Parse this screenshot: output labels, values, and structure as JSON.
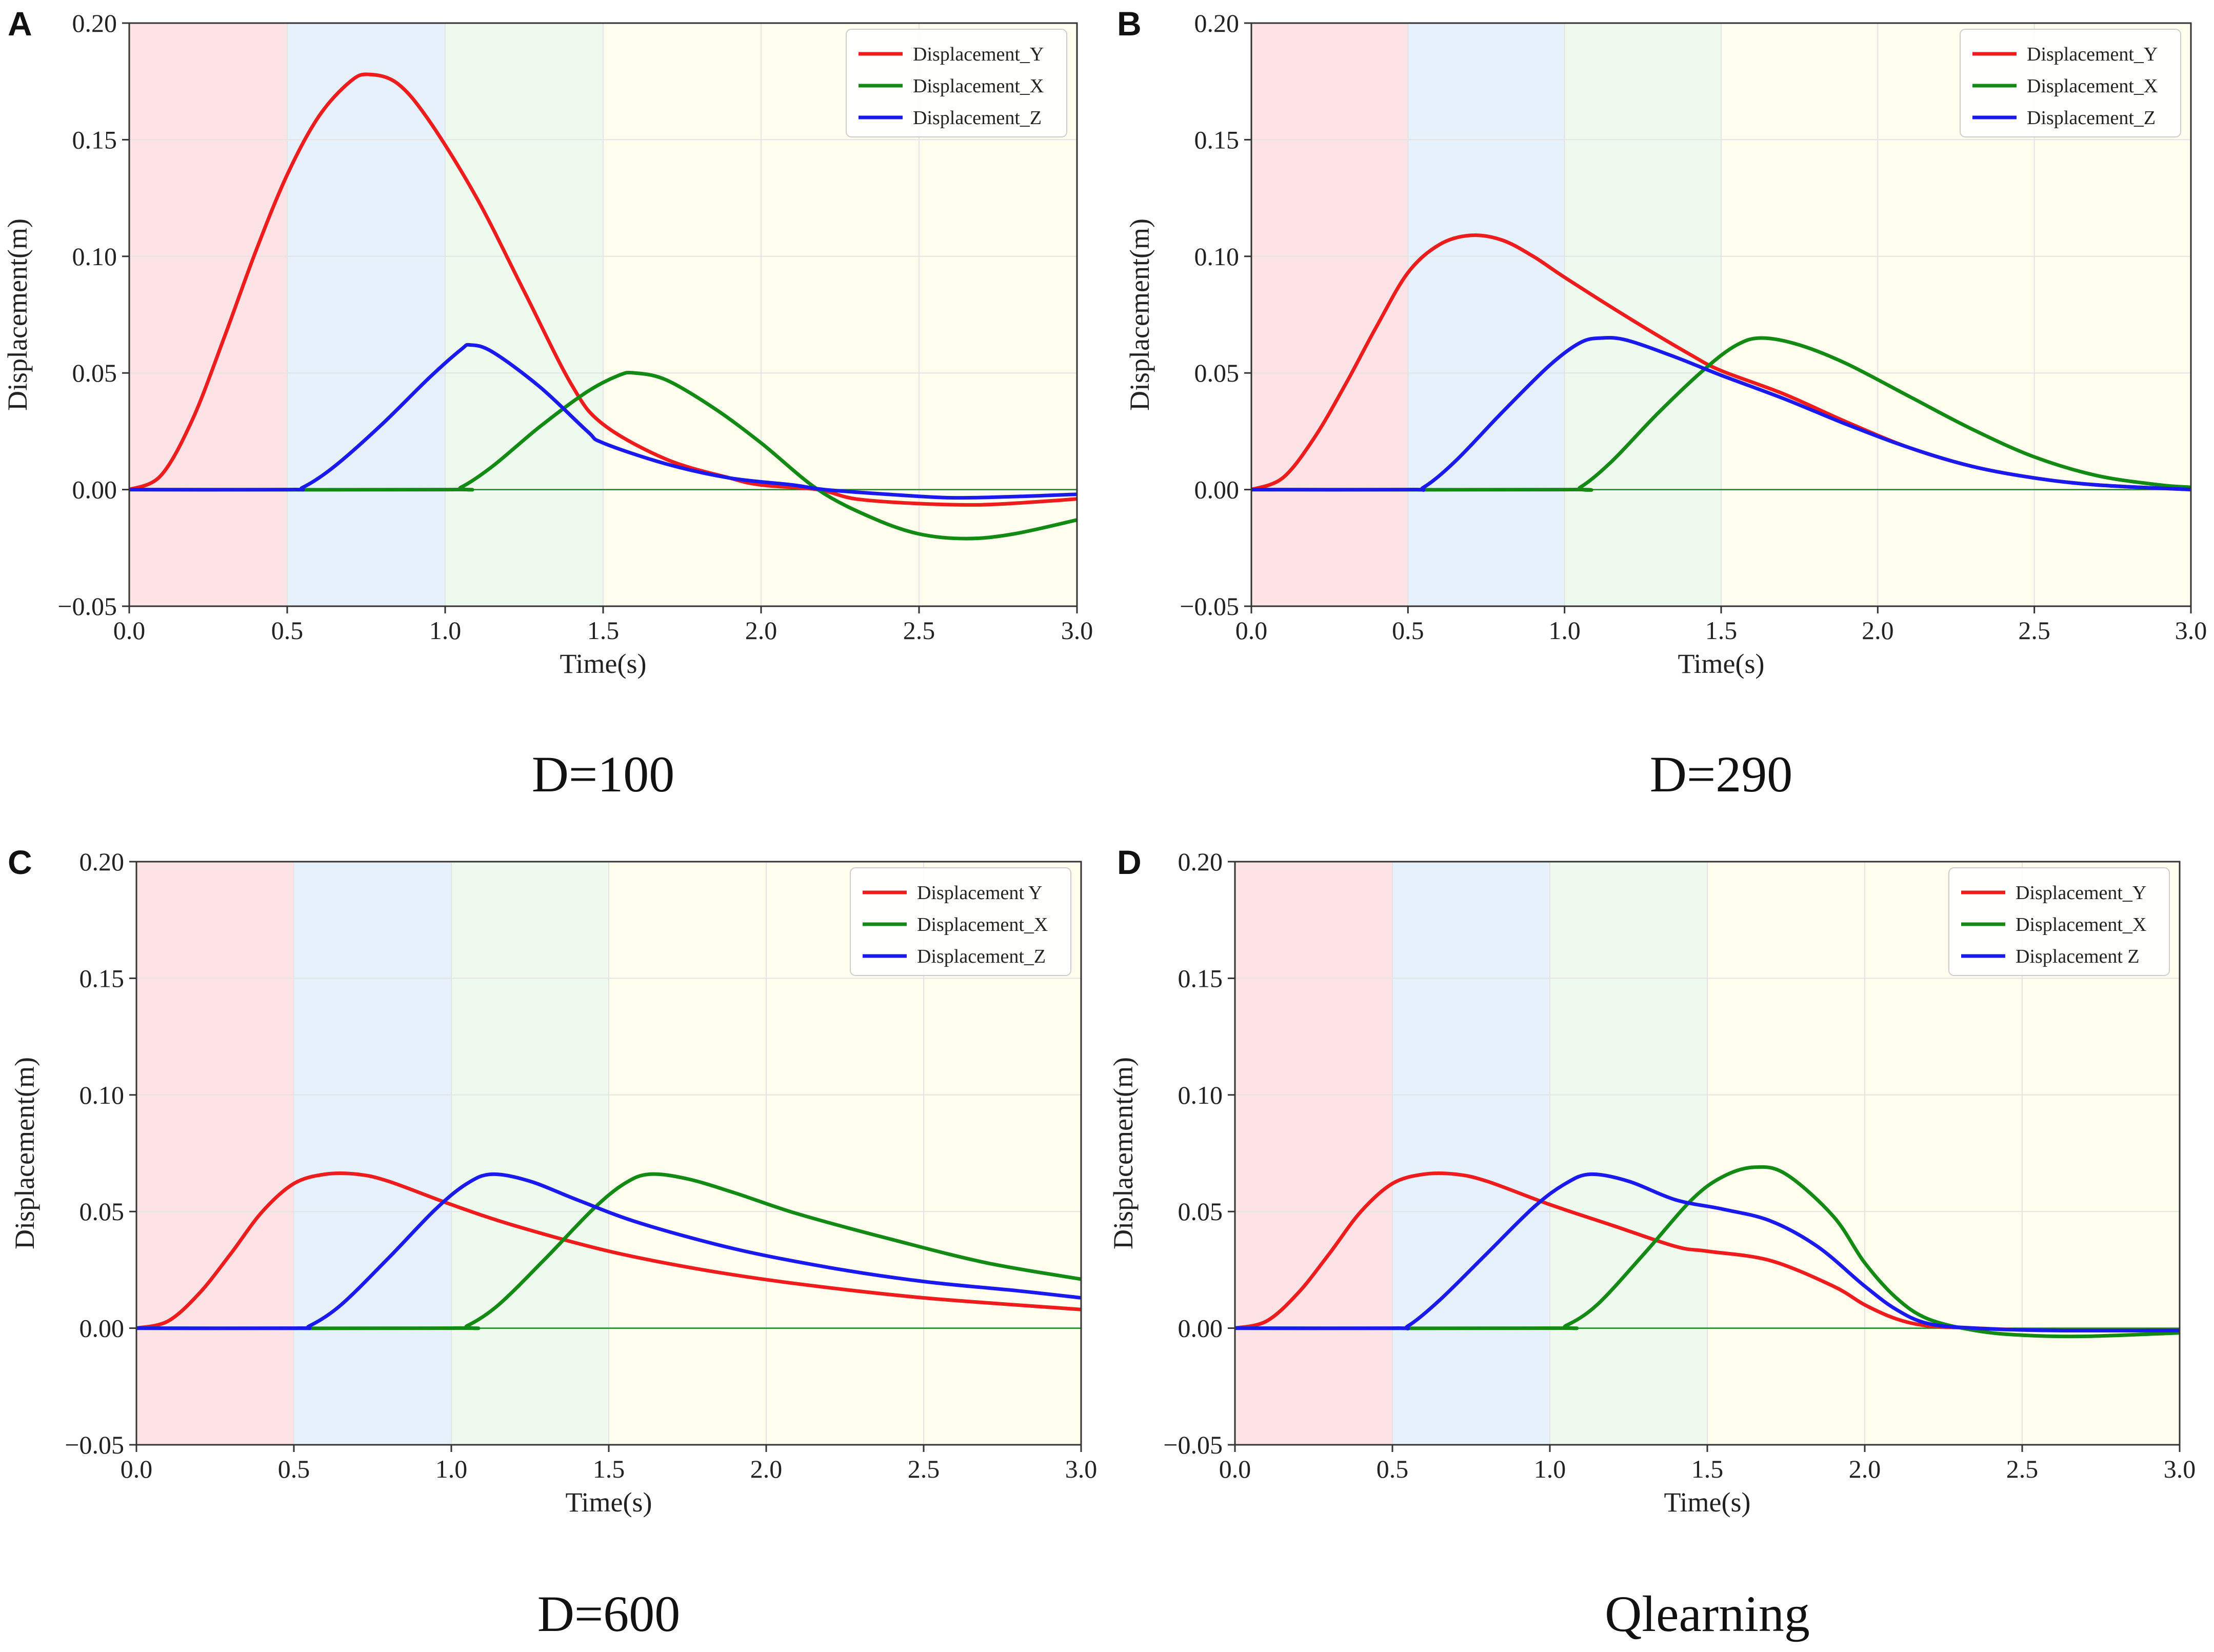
{
  "colors": {
    "red": "#ee1c1c",
    "green": "#138a13",
    "blue": "#1a1aee",
    "phase_bands": [
      "#fde3e5",
      "#e6f1fc",
      "#eefaee",
      "#fefdee"
    ]
  },
  "chart_data": [
    {
      "type": "line",
      "panel": "A",
      "caption": "D=100",
      "xlabel": "Time(s)",
      "ylabel": "Displacement(m)",
      "xlim": [
        0,
        3
      ],
      "ylim": [
        -0.05,
        0.2
      ],
      "xticks": [
        "0.0",
        "0.5",
        "1.0",
        "1.5",
        "2.0",
        "2.5",
        "3.0"
      ],
      "yticks": [
        "−0.05",
        "0.00",
        "0.05",
        "0.10",
        "0.15",
        "0.20"
      ],
      "phase_bands": [
        [
          0,
          0.5
        ],
        [
          0.5,
          1.0
        ],
        [
          1.0,
          1.5
        ],
        [
          1.5,
          3.0
        ]
      ],
      "legend_position": "top-right",
      "series": [
        {
          "name": "Displacement_Y",
          "color": "red",
          "points": [
            [
              0,
              0
            ],
            [
              0.1,
              0.006
            ],
            [
              0.2,
              0.03
            ],
            [
              0.3,
              0.065
            ],
            [
              0.4,
              0.102
            ],
            [
              0.5,
              0.135
            ],
            [
              0.6,
              0.16
            ],
            [
              0.7,
              0.175
            ],
            [
              0.76,
              0.178
            ],
            [
              0.85,
              0.174
            ],
            [
              0.95,
              0.158
            ],
            [
              1.1,
              0.125
            ],
            [
              1.25,
              0.085
            ],
            [
              1.4,
              0.045
            ],
            [
              1.5,
              0.028
            ],
            [
              1.7,
              0.013
            ],
            [
              1.9,
              0.005
            ],
            [
              2.0,
              0.002
            ],
            [
              2.18,
              0.0
            ],
            [
              2.3,
              -0.004
            ],
            [
              2.5,
              -0.006
            ],
            [
              2.7,
              -0.0065
            ],
            [
              2.9,
              -0.005
            ],
            [
              3.0,
              -0.004
            ]
          ]
        },
        {
          "name": "Displacement_X",
          "color": "green",
          "points": [
            [
              0,
              0
            ],
            [
              1.0,
              0
            ],
            [
              1.05,
              0.001
            ],
            [
              1.15,
              0.01
            ],
            [
              1.3,
              0.027
            ],
            [
              1.45,
              0.042
            ],
            [
              1.55,
              0.049
            ],
            [
              1.6,
              0.05
            ],
            [
              1.7,
              0.047
            ],
            [
              1.85,
              0.035
            ],
            [
              2.0,
              0.02
            ],
            [
              2.18,
              0.0
            ],
            [
              2.35,
              -0.012
            ],
            [
              2.5,
              -0.019
            ],
            [
              2.65,
              -0.021
            ],
            [
              2.8,
              -0.019
            ],
            [
              3.0,
              -0.013
            ]
          ]
        },
        {
          "name": "Displacement_Z",
          "color": "blue",
          "points": [
            [
              0,
              0
            ],
            [
              0.5,
              0
            ],
            [
              0.55,
              0.001
            ],
            [
              0.65,
              0.01
            ],
            [
              0.8,
              0.028
            ],
            [
              0.95,
              0.048
            ],
            [
              1.05,
              0.06
            ],
            [
              1.08,
              0.062
            ],
            [
              1.15,
              0.059
            ],
            [
              1.3,
              0.044
            ],
            [
              1.45,
              0.025
            ],
            [
              1.5,
              0.02
            ],
            [
              1.7,
              0.011
            ],
            [
              1.9,
              0.005
            ],
            [
              2.1,
              0.002
            ],
            [
              2.2,
              0.0
            ],
            [
              2.4,
              -0.002
            ],
            [
              2.6,
              -0.0035
            ],
            [
              2.8,
              -0.003
            ],
            [
              3.0,
              -0.002
            ]
          ]
        }
      ]
    },
    {
      "type": "line",
      "panel": "B",
      "caption": "D=290",
      "xlabel": "Time(s)",
      "ylabel": "Displacement(m)",
      "xlim": [
        0,
        3
      ],
      "ylim": [
        -0.05,
        0.2
      ],
      "xticks": [
        "0.0",
        "0.5",
        "1.0",
        "1.5",
        "2.0",
        "2.5",
        "3.0"
      ],
      "yticks": [
        "−0.05",
        "0.00",
        "0.05",
        "0.10",
        "0.15",
        "0.20"
      ],
      "phase_bands": [
        [
          0,
          0.5
        ],
        [
          0.5,
          1.0
        ],
        [
          1.0,
          1.5
        ],
        [
          1.5,
          3.0
        ]
      ],
      "legend_position": "top-right",
      "series": [
        {
          "name": "Displacement_Y",
          "color": "red",
          "points": [
            [
              0,
              0
            ],
            [
              0.1,
              0.005
            ],
            [
              0.2,
              0.022
            ],
            [
              0.3,
              0.045
            ],
            [
              0.4,
              0.07
            ],
            [
              0.5,
              0.093
            ],
            [
              0.6,
              0.105
            ],
            [
              0.7,
              0.109
            ],
            [
              0.8,
              0.107
            ],
            [
              0.9,
              0.1
            ],
            [
              1.0,
              0.091
            ],
            [
              1.2,
              0.074
            ],
            [
              1.4,
              0.058
            ],
            [
              1.5,
              0.051
            ],
            [
              1.7,
              0.041
            ],
            [
              1.9,
              0.029
            ],
            [
              2.1,
              0.018
            ],
            [
              2.3,
              0.01
            ],
            [
              2.5,
              0.005
            ],
            [
              2.7,
              0.002
            ],
            [
              3.0,
              0.0
            ]
          ]
        },
        {
          "name": "Displacement_X",
          "color": "green",
          "points": [
            [
              0,
              0
            ],
            [
              1.0,
              0
            ],
            [
              1.05,
              0.001
            ],
            [
              1.15,
              0.012
            ],
            [
              1.3,
              0.033
            ],
            [
              1.45,
              0.052
            ],
            [
              1.55,
              0.062
            ],
            [
              1.63,
              0.065
            ],
            [
              1.75,
              0.062
            ],
            [
              1.9,
              0.054
            ],
            [
              2.1,
              0.04
            ],
            [
              2.3,
              0.026
            ],
            [
              2.5,
              0.014
            ],
            [
              2.7,
              0.006
            ],
            [
              2.9,
              0.002
            ],
            [
              3.0,
              0.001
            ]
          ]
        },
        {
          "name": "Displacement_Z",
          "color": "blue",
          "points": [
            [
              0,
              0
            ],
            [
              0.5,
              0
            ],
            [
              0.55,
              0.001
            ],
            [
              0.65,
              0.012
            ],
            [
              0.8,
              0.033
            ],
            [
              0.95,
              0.053
            ],
            [
              1.05,
              0.063
            ],
            [
              1.12,
              0.065
            ],
            [
              1.2,
              0.064
            ],
            [
              1.35,
              0.057
            ],
            [
              1.5,
              0.049
            ],
            [
              1.7,
              0.039
            ],
            [
              1.9,
              0.028
            ],
            [
              2.1,
              0.018
            ],
            [
              2.3,
              0.01
            ],
            [
              2.5,
              0.005
            ],
            [
              2.7,
              0.002
            ],
            [
              3.0,
              0.0
            ]
          ]
        }
      ]
    },
    {
      "type": "line",
      "panel": "C",
      "caption": "D=600",
      "xlabel": "Time(s)",
      "ylabel": "Displacement(m)",
      "xlim": [
        0,
        3
      ],
      "ylim": [
        -0.05,
        0.2
      ],
      "xticks": [
        "0.0",
        "0.5",
        "1.0",
        "1.5",
        "2.0",
        "2.5",
        "3.0"
      ],
      "yticks": [
        "−0.05",
        "0.00",
        "0.05",
        "0.10",
        "0.15",
        "0.20"
      ],
      "phase_bands": [
        [
          0,
          0.5
        ],
        [
          0.5,
          1.0
        ],
        [
          1.0,
          1.5
        ],
        [
          1.5,
          3.0
        ]
      ],
      "legend_position": "top-right",
      "series": [
        {
          "name": "Displacement Y",
          "color": "red",
          "points": [
            [
              0,
              0
            ],
            [
              0.1,
              0.003
            ],
            [
              0.2,
              0.015
            ],
            [
              0.3,
              0.032
            ],
            [
              0.4,
              0.05
            ],
            [
              0.5,
              0.062
            ],
            [
              0.6,
              0.066
            ],
            [
              0.7,
              0.066
            ],
            [
              0.8,
              0.063
            ],
            [
              1.0,
              0.053
            ],
            [
              1.2,
              0.044
            ],
            [
              1.5,
              0.033
            ],
            [
              1.8,
              0.025
            ],
            [
              2.1,
              0.019
            ],
            [
              2.5,
              0.013
            ],
            [
              3.0,
              0.008
            ]
          ]
        },
        {
          "name": "Displacement_X",
          "color": "green",
          "points": [
            [
              0,
              0
            ],
            [
              1.0,
              0
            ],
            [
              1.05,
              0.001
            ],
            [
              1.15,
              0.01
            ],
            [
              1.3,
              0.03
            ],
            [
              1.45,
              0.051
            ],
            [
              1.55,
              0.062
            ],
            [
              1.63,
              0.066
            ],
            [
              1.75,
              0.064
            ],
            [
              1.9,
              0.058
            ],
            [
              2.1,
              0.049
            ],
            [
              2.4,
              0.038
            ],
            [
              2.7,
              0.028
            ],
            [
              3.0,
              0.021
            ]
          ]
        },
        {
          "name": "Displacement_Z",
          "color": "blue",
          "points": [
            [
              0,
              0
            ],
            [
              0.5,
              0
            ],
            [
              0.55,
              0.001
            ],
            [
              0.65,
              0.01
            ],
            [
              0.8,
              0.03
            ],
            [
              0.95,
              0.051
            ],
            [
              1.05,
              0.062
            ],
            [
              1.13,
              0.066
            ],
            [
              1.25,
              0.063
            ],
            [
              1.4,
              0.055
            ],
            [
              1.6,
              0.045
            ],
            [
              1.9,
              0.034
            ],
            [
              2.2,
              0.026
            ],
            [
              2.5,
              0.02
            ],
            [
              2.8,
              0.016
            ],
            [
              3.0,
              0.013
            ]
          ]
        }
      ]
    },
    {
      "type": "line",
      "panel": "D",
      "caption": "Qlearning",
      "xlabel": "Time(s)",
      "ylabel": "Displacement(m)",
      "xlim": [
        0,
        3
      ],
      "ylim": [
        -0.05,
        0.2
      ],
      "xticks": [
        "0.0",
        "0.5",
        "1.0",
        "1.5",
        "2.0",
        "2.5",
        "3.0"
      ],
      "yticks": [
        "−0.05",
        "0.00",
        "0.05",
        "0.10",
        "0.15",
        "0.20"
      ],
      "phase_bands": [
        [
          0,
          0.5
        ],
        [
          0.5,
          1.0
        ],
        [
          1.0,
          1.5
        ],
        [
          1.5,
          3.0
        ]
      ],
      "legend_position": "top-right",
      "series": [
        {
          "name": "Displacement_Y",
          "color": "red",
          "points": [
            [
              0,
              0
            ],
            [
              0.1,
              0.003
            ],
            [
              0.2,
              0.015
            ],
            [
              0.3,
              0.032
            ],
            [
              0.4,
              0.05
            ],
            [
              0.5,
              0.062
            ],
            [
              0.6,
              0.066
            ],
            [
              0.7,
              0.066
            ],
            [
              0.8,
              0.063
            ],
            [
              1.0,
              0.053
            ],
            [
              1.2,
              0.044
            ],
            [
              1.4,
              0.035
            ],
            [
              1.5,
              0.033
            ],
            [
              1.7,
              0.029
            ],
            [
              1.9,
              0.018
            ],
            [
              2.0,
              0.01
            ],
            [
              2.1,
              0.004
            ],
            [
              2.2,
              0.001
            ],
            [
              2.35,
              0.0
            ],
            [
              2.6,
              -0.001
            ],
            [
              3.0,
              -0.001
            ]
          ]
        },
        {
          "name": "Displacement_X",
          "color": "green",
          "points": [
            [
              0,
              0
            ],
            [
              1.0,
              0
            ],
            [
              1.05,
              0.001
            ],
            [
              1.15,
              0.01
            ],
            [
              1.3,
              0.032
            ],
            [
              1.45,
              0.055
            ],
            [
              1.55,
              0.065
            ],
            [
              1.65,
              0.069
            ],
            [
              1.75,
              0.066
            ],
            [
              1.9,
              0.048
            ],
            [
              2.0,
              0.028
            ],
            [
              2.1,
              0.013
            ],
            [
              2.2,
              0.004
            ],
            [
              2.35,
              -0.001
            ],
            [
              2.5,
              -0.003
            ],
            [
              2.7,
              -0.0035
            ],
            [
              3.0,
              -0.002
            ]
          ]
        },
        {
          "name": "Displacement Z",
          "color": "blue",
          "points": [
            [
              0,
              0
            ],
            [
              0.5,
              0
            ],
            [
              0.55,
              0.001
            ],
            [
              0.65,
              0.012
            ],
            [
              0.8,
              0.032
            ],
            [
              0.95,
              0.052
            ],
            [
              1.05,
              0.062
            ],
            [
              1.13,
              0.066
            ],
            [
              1.25,
              0.063
            ],
            [
              1.4,
              0.055
            ],
            [
              1.55,
              0.051
            ],
            [
              1.7,
              0.046
            ],
            [
              1.85,
              0.035
            ],
            [
              2.0,
              0.018
            ],
            [
              2.1,
              0.008
            ],
            [
              2.2,
              0.002
            ],
            [
              2.35,
              0.0
            ],
            [
              2.6,
              -0.001
            ],
            [
              3.0,
              -0.001
            ]
          ]
        }
      ]
    }
  ]
}
